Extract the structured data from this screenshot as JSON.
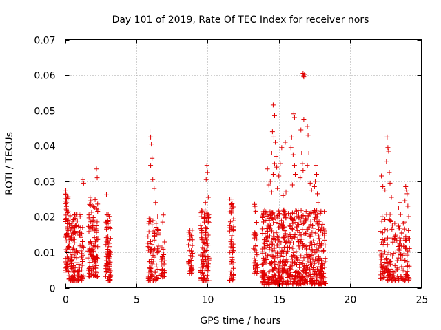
{
  "chart_data": {
    "type": "scatter",
    "title": "Day 101 of 2019, Rate Of TEC Index for receiver nors",
    "xlabel": "GPS time / hours",
    "ylabel": "ROTI / TECUs",
    "xlim": [
      0,
      25
    ],
    "ylim": [
      0,
      0.07
    ],
    "x_ticks": [
      0,
      5,
      10,
      15,
      20,
      25
    ],
    "x_tick_labels": [
      "0",
      "5",
      "10",
      "15",
      "20",
      "25"
    ],
    "y_ticks": [
      0,
      0.01,
      0.02,
      0.03,
      0.04,
      0.05,
      0.06,
      0.07
    ],
    "y_tick_labels": [
      "0",
      "0.01",
      "0.02",
      "0.03",
      "0.04",
      "0.05",
      "0.06",
      "0.07"
    ],
    "grid": true,
    "marker": "+",
    "color": "#e00000",
    "clusters": [
      {
        "x_start": 0.0,
        "x_end": 0.25,
        "y_low": 0.004,
        "y_high": 0.027,
        "count": 60
      },
      {
        "x_start": 0.25,
        "x_end": 1.3,
        "y_low": 0.002,
        "y_high": 0.021,
        "count": 140
      },
      {
        "x_start": 1.6,
        "x_end": 2.3,
        "y_low": 0.003,
        "y_high": 0.025,
        "count": 110
      },
      {
        "x_start": 2.85,
        "x_end": 3.2,
        "y_low": 0.002,
        "y_high": 0.021,
        "count": 80
      },
      {
        "x_start": 5.8,
        "x_end": 6.55,
        "y_low": 0.002,
        "y_high": 0.02,
        "count": 90
      },
      {
        "x_start": 6.75,
        "x_end": 7.0,
        "y_low": 0.003,
        "y_high": 0.013,
        "count": 25
      },
      {
        "x_start": 8.65,
        "x_end": 8.95,
        "y_low": 0.004,
        "y_high": 0.017,
        "count": 40
      },
      {
        "x_start": 9.5,
        "x_end": 10.1,
        "y_low": 0.002,
        "y_high": 0.022,
        "count": 110
      },
      {
        "x_start": 11.55,
        "x_end": 11.85,
        "y_low": 0.002,
        "y_high": 0.025,
        "count": 55
      },
      {
        "x_start": 13.2,
        "x_end": 13.5,
        "y_low": 0.004,
        "y_high": 0.023,
        "count": 40
      },
      {
        "x_start": 13.8,
        "x_end": 18.3,
        "y_low": 0.001,
        "y_high": 0.022,
        "count": 700
      },
      {
        "x_start": 22.1,
        "x_end": 24.2,
        "y_low": 0.002,
        "y_high": 0.021,
        "count": 190
      }
    ],
    "points": [
      [
        0.05,
        0.0275
      ],
      [
        0.1,
        0.025
      ],
      [
        1.25,
        0.0305
      ],
      [
        1.3,
        0.0295
      ],
      [
        1.75,
        0.0255
      ],
      [
        1.8,
        0.0245
      ],
      [
        2.2,
        0.0335
      ],
      [
        2.25,
        0.031
      ],
      [
        2.9,
        0.0262
      ],
      [
        5.95,
        0.0442
      ],
      [
        6.0,
        0.0425
      ],
      [
        6.05,
        0.0405
      ],
      [
        6.1,
        0.0365
      ],
      [
        6.0,
        0.0345
      ],
      [
        6.15,
        0.0305
      ],
      [
        6.25,
        0.028
      ],
      [
        6.35,
        0.024
      ],
      [
        6.9,
        0.0205
      ],
      [
        6.85,
        0.0185
      ],
      [
        9.95,
        0.0345
      ],
      [
        10.0,
        0.0325
      ],
      [
        9.9,
        0.0305
      ],
      [
        10.05,
        0.0255
      ],
      [
        9.85,
        0.024
      ],
      [
        11.7,
        0.025
      ],
      [
        11.65,
        0.0235
      ],
      [
        13.3,
        0.0235
      ],
      [
        14.6,
        0.0515
      ],
      [
        14.7,
        0.0485
      ],
      [
        14.55,
        0.044
      ],
      [
        14.65,
        0.0425
      ],
      [
        14.75,
        0.041
      ],
      [
        14.5,
        0.038
      ],
      [
        14.8,
        0.037
      ],
      [
        14.7,
        0.035
      ],
      [
        14.85,
        0.034
      ],
      [
        14.6,
        0.032
      ],
      [
        14.4,
        0.03
      ],
      [
        14.2,
        0.0335
      ],
      [
        14.3,
        0.029
      ],
      [
        14.5,
        0.027
      ],
      [
        14.9,
        0.028
      ],
      [
        15.2,
        0.0395
      ],
      [
        15.1,
        0.035
      ],
      [
        15.0,
        0.0315
      ],
      [
        15.3,
        0.026
      ],
      [
        15.45,
        0.041
      ],
      [
        15.5,
        0.027
      ],
      [
        15.9,
        0.0425
      ],
      [
        15.85,
        0.0395
      ],
      [
        16.0,
        0.0375
      ],
      [
        16.1,
        0.0345
      ],
      [
        16.05,
        0.049
      ],
      [
        16.1,
        0.048
      ],
      [
        16.15,
        0.032
      ],
      [
        15.95,
        0.029
      ],
      [
        16.7,
        0.0605
      ],
      [
        16.75,
        0.0595
      ],
      [
        16.8,
        0.0602
      ],
      [
        16.72,
        0.0598
      ],
      [
        16.55,
        0.0445
      ],
      [
        16.6,
        0.038
      ],
      [
        16.65,
        0.035
      ],
      [
        16.5,
        0.031
      ],
      [
        16.7,
        0.033
      ],
      [
        16.75,
        0.0475
      ],
      [
        17.0,
        0.0455
      ],
      [
        17.05,
        0.043
      ],
      [
        17.1,
        0.038
      ],
      [
        17.0,
        0.0345
      ],
      [
        17.2,
        0.0295
      ],
      [
        17.3,
        0.0275
      ],
      [
        17.6,
        0.0345
      ],
      [
        17.65,
        0.032
      ],
      [
        17.5,
        0.0285
      ],
      [
        17.7,
        0.0265
      ],
      [
        17.75,
        0.024
      ],
      [
        17.55,
        0.03
      ],
      [
        22.2,
        0.0315
      ],
      [
        22.3,
        0.0285
      ],
      [
        22.45,
        0.0275
      ],
      [
        22.6,
        0.0425
      ],
      [
        22.65,
        0.0395
      ],
      [
        22.7,
        0.0385
      ],
      [
        22.55,
        0.0355
      ],
      [
        22.75,
        0.0325
      ],
      [
        22.8,
        0.0295
      ],
      [
        22.9,
        0.0255
      ],
      [
        23.4,
        0.0225
      ],
      [
        23.5,
        0.024
      ],
      [
        23.9,
        0.0285
      ],
      [
        23.95,
        0.0275
      ],
      [
        24.0,
        0.0265
      ],
      [
        23.85,
        0.0245
      ],
      [
        24.05,
        0.023
      ]
    ]
  }
}
